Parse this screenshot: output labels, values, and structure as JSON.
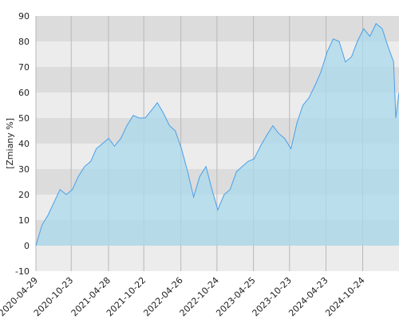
{
  "chart_data": {
    "type": "area",
    "y_label": "[Zmiany %]",
    "x": [
      "2020-04-29",
      "2020-05-29",
      "2020-06-29",
      "2020-07-29",
      "2020-08-28",
      "2020-09-29",
      "2020-10-29",
      "2020-11-27",
      "2020-12-29",
      "2021-01-29",
      "2021-02-26",
      "2021-03-29",
      "2021-04-29",
      "2021-05-28",
      "2021-06-29",
      "2021-07-29",
      "2021-08-30",
      "2021-09-29",
      "2021-10-29",
      "2021-11-29",
      "2021-12-29",
      "2022-01-28",
      "2022-02-28",
      "2022-03-29",
      "2022-04-29",
      "2022-05-30",
      "2022-06-29",
      "2022-07-29",
      "2022-08-30",
      "2022-09-29",
      "2022-10-28",
      "2022-11-29",
      "2022-12-29",
      "2023-01-30",
      "2023-02-28",
      "2023-03-29",
      "2023-04-28",
      "2023-05-30",
      "2023-06-29",
      "2023-07-31",
      "2023-08-29",
      "2023-09-29",
      "2023-10-30",
      "2023-11-29",
      "2023-12-29",
      "2024-01-29",
      "2024-02-29",
      "2024-03-28",
      "2024-04-29",
      "2024-05-29",
      "2024-06-28",
      "2024-07-29",
      "2024-08-29",
      "2024-09-27",
      "2024-10-29",
      "2024-11-29",
      "2024-12-30",
      "2025-01-30",
      "2025-02-28",
      "2025-03-28",
      "2025-04-08",
      "2025-04-24"
    ],
    "values": [
      0,
      8,
      12,
      17,
      22,
      20,
      22,
      27,
      31,
      33,
      38,
      40,
      42,
      39,
      42,
      47,
      51,
      50,
      50,
      53,
      56,
      52,
      47,
      45,
      38,
      29,
      19,
      27,
      31,
      22,
      14,
      20,
      22,
      29,
      31,
      33,
      34,
      39,
      43,
      47,
      44,
      42,
      38,
      48,
      55,
      58,
      63,
      68,
      76,
      81,
      80,
      72,
      74,
      80,
      85,
      82,
      87,
      85,
      78,
      72,
      50,
      60
    ],
    "color": "#4a9fe8",
    "fill": "#a9d9ec",
    "xlim": [
      "2020-04-29",
      "2025-04-24"
    ],
    "xticks": [
      "2020-04-29",
      "2020-10-23",
      "2021-04-28",
      "2021-10-22",
      "2022-04-26",
      "2022-10-24",
      "2023-04-25",
      "2023-10-23",
      "2024-04-23",
      "2024-10-24"
    ],
    "ylim": [
      -10,
      90
    ],
    "yticks": [
      -10,
      0,
      10,
      20,
      30,
      40,
      50,
      60,
      70,
      80,
      90
    ],
    "bands": true,
    "grid": true
  }
}
